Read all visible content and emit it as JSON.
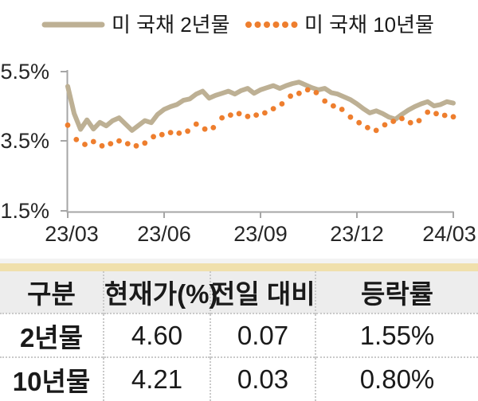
{
  "chart_data": {
    "type": "line",
    "title": "",
    "x_ticks": [
      "23/03",
      "23/06",
      "23/09",
      "23/12",
      "24/03"
    ],
    "y_ticks": [
      "5.5%",
      "3.5%",
      "1.5%"
    ],
    "ylim": [
      1.5,
      5.5
    ],
    "y_unit": "%",
    "x_range": [
      "2023-03",
      "2024-03"
    ],
    "grid": false,
    "legend_position": "top",
    "series": [
      {
        "name": "미 국채 2년물",
        "style": "solid-line",
        "color": "#BDB094",
        "values": [
          5.08,
          4.3,
          3.85,
          4.12,
          3.86,
          4.05,
          3.95,
          4.1,
          4.18,
          4.0,
          3.82,
          3.96,
          4.1,
          4.04,
          4.28,
          4.42,
          4.5,
          4.56,
          4.68,
          4.72,
          4.86,
          4.94,
          4.74,
          4.82,
          4.88,
          4.94,
          4.86,
          4.96,
          5.02,
          4.88,
          4.98,
          5.04,
          5.1,
          5.02,
          5.1,
          5.16,
          5.2,
          5.12,
          5.04,
          4.98,
          5.02,
          4.9,
          4.86,
          4.78,
          4.7,
          4.58,
          4.44,
          4.32,
          4.38,
          4.3,
          4.2,
          4.14,
          4.28,
          4.4,
          4.5,
          4.58,
          4.64,
          4.52,
          4.56,
          4.64,
          4.6
        ]
      },
      {
        "name": "미 국채 10년물",
        "style": "dotted",
        "color": "#EE7E2E",
        "values": [
          3.97,
          3.56,
          3.42,
          3.5,
          3.38,
          3.44,
          3.52,
          3.44,
          3.38,
          3.46,
          3.64,
          3.7,
          3.76,
          3.74,
          3.8,
          4.0,
          3.86,
          3.9,
          4.18,
          4.26,
          4.3,
          4.22,
          4.26,
          4.32,
          4.44,
          4.58,
          4.8,
          4.88,
          4.98,
          4.9,
          4.66,
          4.52,
          4.42,
          4.2,
          4.04,
          3.9,
          3.82,
          3.98,
          4.08,
          4.16,
          4.04,
          4.1,
          4.34,
          4.3,
          4.25,
          4.21
        ]
      }
    ]
  },
  "table": {
    "headers": [
      "구분",
      "현재가(%)",
      "전일 대비",
      "등락률"
    ],
    "rows": [
      [
        "2년물",
        "4.60",
        "0.07",
        "1.55%"
      ],
      [
        "10년물",
        "4.21",
        "0.03",
        "0.80%"
      ]
    ]
  },
  "colors": {
    "accent_bar": "#F0E0AC",
    "header_bg": "#EDEDED",
    "axis": "#A6A6A6",
    "text": "#262626",
    "divider": "#C9C9C9"
  }
}
